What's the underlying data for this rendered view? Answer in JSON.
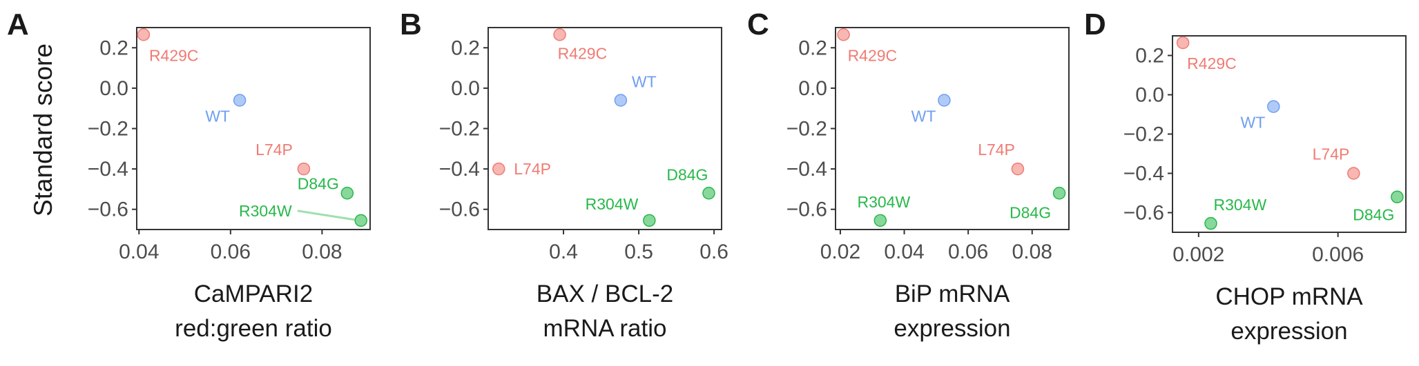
{
  "y_axis_title": "Standard score",
  "colors": {
    "WT": "#6f9ff0",
    "R429C": "#f07b73",
    "L74P": "#f07b73",
    "D84G": "#27b84a",
    "R304W": "#27b84a"
  },
  "chart_data": [
    {
      "type": "scatter",
      "panel": "A",
      "xlabel": [
        "CaMPARI2",
        "red:green ratio"
      ],
      "ylabel": "Standard score",
      "xlim": [
        0.0395,
        0.0905
      ],
      "ylim": [
        -0.7,
        0.3
      ],
      "xticks": [
        0.04,
        0.06,
        0.08
      ],
      "xtick_labels": [
        "0.04",
        "0.06",
        "0.08"
      ],
      "yticks": [
        0.2,
        0.0,
        -0.2,
        -0.4,
        -0.6
      ],
      "ytick_labels": [
        "0.2",
        "0.0",
        "−0.2",
        "−0.4",
        "−0.6"
      ],
      "grid": false,
      "points": [
        {
          "label": "R429C",
          "x": 0.041,
          "y": 0.265
        },
        {
          "label": "WT",
          "x": 0.062,
          "y": -0.06
        },
        {
          "label": "L74P",
          "x": 0.076,
          "y": -0.4
        },
        {
          "label": "D84G",
          "x": 0.0855,
          "y": -0.52
        },
        {
          "label": "R304W",
          "x": 0.0885,
          "y": -0.655
        }
      ]
    },
    {
      "type": "scatter",
      "panel": "B",
      "xlabel": [
        "BAX / BCL-2",
        "mRNA ratio"
      ],
      "ylabel": "",
      "xlim": [
        0.3,
        0.61
      ],
      "ylim": [
        -0.7,
        0.3
      ],
      "xticks": [
        0.4,
        0.5,
        0.6
      ],
      "xtick_labels": [
        "0.4",
        "0.5",
        "0.6"
      ],
      "yticks": [
        0.2,
        0.0,
        -0.2,
        -0.4,
        -0.6
      ],
      "ytick_labels": [
        "0.2",
        "0.0",
        "−0.2",
        "−0.4",
        "−0.6"
      ],
      "grid": false,
      "points": [
        {
          "label": "R429C",
          "x": 0.395,
          "y": 0.265
        },
        {
          "label": "WT",
          "x": 0.476,
          "y": -0.06
        },
        {
          "label": "L74P",
          "x": 0.314,
          "y": -0.4
        },
        {
          "label": "D84G",
          "x": 0.593,
          "y": -0.52
        },
        {
          "label": "R304W",
          "x": 0.514,
          "y": -0.655
        }
      ]
    },
    {
      "type": "scatter",
      "panel": "C",
      "xlabel": [
        "BiP mRNA",
        "expression"
      ],
      "ylabel": "",
      "xlim": [
        0.0185,
        0.0915
      ],
      "ylim": [
        -0.7,
        0.3
      ],
      "xticks": [
        0.02,
        0.04,
        0.06,
        0.08
      ],
      "xtick_labels": [
        "0.02",
        "0.04",
        "0.06",
        "0.08"
      ],
      "yticks": [
        0.2,
        0.0,
        -0.2,
        -0.4,
        -0.6
      ],
      "ytick_labels": [
        "0.2",
        "0.0",
        "−0.2",
        "−0.4",
        "−0.6"
      ],
      "grid": false,
      "points": [
        {
          "label": "R429C",
          "x": 0.021,
          "y": 0.265
        },
        {
          "label": "WT",
          "x": 0.0525,
          "y": -0.06
        },
        {
          "label": "L74P",
          "x": 0.0755,
          "y": -0.4
        },
        {
          "label": "D84G",
          "x": 0.0885,
          "y": -0.52
        },
        {
          "label": "R304W",
          "x": 0.0325,
          "y": -0.655
        }
      ]
    },
    {
      "type": "scatter",
      "panel": "D",
      "xlabel": [
        "CHOP mRNA",
        "expression"
      ],
      "ylabel": "",
      "xlim": [
        0.00125,
        0.00795
      ],
      "ylim": [
        -0.7,
        0.3
      ],
      "xticks": [
        0.002,
        0.006
      ],
      "xtick_labels": [
        "0.002",
        "0.006"
      ],
      "yticks": [
        0.2,
        0.0,
        -0.2,
        -0.4,
        -0.6
      ],
      "ytick_labels": [
        "0.2",
        "0.0",
        "−0.2",
        "−0.4",
        "−0.6"
      ],
      "grid": false,
      "points": [
        {
          "label": "R429C",
          "x": 0.00155,
          "y": 0.265
        },
        {
          "label": "WT",
          "x": 0.00415,
          "y": -0.06
        },
        {
          "label": "L74P",
          "x": 0.00645,
          "y": -0.4
        },
        {
          "label": "D84G",
          "x": 0.0077,
          "y": -0.52
        },
        {
          "label": "R304W",
          "x": 0.00235,
          "y": -0.655
        }
      ]
    }
  ]
}
